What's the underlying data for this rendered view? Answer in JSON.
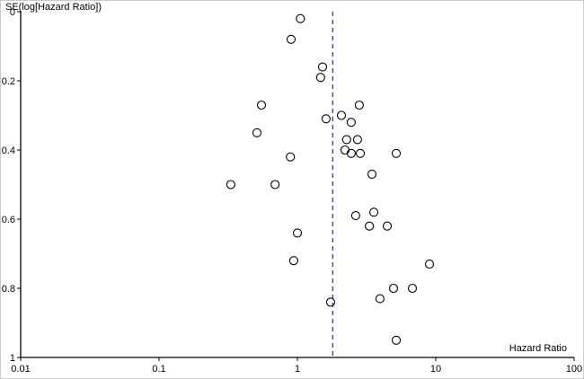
{
  "chart_data": {
    "type": "scatter",
    "title": "",
    "xlabel": "Hazard Ratio",
    "ylabel": "SE(log[Hazard Ratio])",
    "x_scale": "log",
    "y_inverted": true,
    "xlim": [
      0.01,
      100
    ],
    "ylim": [
      0,
      1
    ],
    "x_ticks": [
      0.01,
      0.1,
      1,
      10,
      100
    ],
    "x_tick_labels": [
      "0.01",
      "0.1",
      "1",
      "10",
      "100"
    ],
    "y_ticks": [
      0,
      0.2,
      0.4,
      0.6,
      0.8,
      1
    ],
    "y_tick_labels": [
      "0",
      "0.2",
      "0.4",
      "0.6",
      "0.8",
      "1"
    ],
    "grid": false,
    "legend": "none",
    "marker": {
      "shape": "open-circle",
      "radius_px": 4.5,
      "stroke_color": "#000000"
    },
    "reference_line": {
      "x": 1.8,
      "style": "dashed",
      "color": "#3333cc"
    },
    "points": [
      {
        "hr": 1.05,
        "se": 0.02
      },
      {
        "hr": 0.9,
        "se": 0.08
      },
      {
        "hr": 1.52,
        "se": 0.16
      },
      {
        "hr": 1.47,
        "se": 0.19
      },
      {
        "hr": 0.55,
        "se": 0.27
      },
      {
        "hr": 2.8,
        "se": 0.27
      },
      {
        "hr": 2.08,
        "se": 0.3
      },
      {
        "hr": 1.61,
        "se": 0.31
      },
      {
        "hr": 2.45,
        "se": 0.32
      },
      {
        "hr": 0.51,
        "se": 0.35
      },
      {
        "hr": 2.27,
        "se": 0.37
      },
      {
        "hr": 2.72,
        "se": 0.37
      },
      {
        "hr": 2.21,
        "se": 0.4
      },
      {
        "hr": 2.45,
        "se": 0.41
      },
      {
        "hr": 2.85,
        "se": 0.41
      },
      {
        "hr": 5.18,
        "se": 0.41
      },
      {
        "hr": 0.89,
        "se": 0.42
      },
      {
        "hr": 3.46,
        "se": 0.47
      },
      {
        "hr": 0.33,
        "se": 0.5
      },
      {
        "hr": 0.69,
        "se": 0.5
      },
      {
        "hr": 3.57,
        "se": 0.58
      },
      {
        "hr": 2.64,
        "se": 0.59
      },
      {
        "hr": 4.46,
        "se": 0.62
      },
      {
        "hr": 3.31,
        "se": 0.62
      },
      {
        "hr": 1.0,
        "se": 0.64
      },
      {
        "hr": 0.94,
        "se": 0.72
      },
      {
        "hr": 9.0,
        "se": 0.73
      },
      {
        "hr": 1.74,
        "se": 0.84
      },
      {
        "hr": 3.95,
        "se": 0.83
      },
      {
        "hr": 4.95,
        "se": 0.8
      },
      {
        "hr": 6.78,
        "se": 0.8
      },
      {
        "hr": 5.18,
        "se": 0.95
      }
    ]
  }
}
